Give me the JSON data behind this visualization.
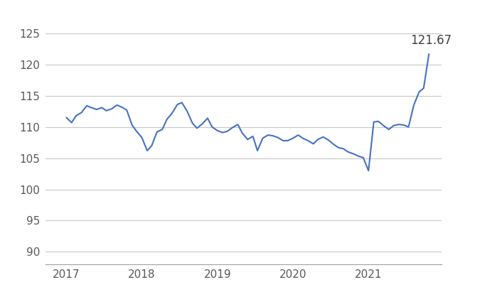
{
  "line_color": "#4472C4",
  "annotation_text": "121.67",
  "annotation_color": "#404040",
  "background_color": "#ffffff",
  "grid_color": "#c8c8c8",
  "ylim": [
    88,
    127
  ],
  "yticks": [
    90,
    95,
    100,
    105,
    110,
    115,
    120,
    125
  ],
  "xlim": [
    2016.72,
    2021.97
  ],
  "xticks": [
    2017,
    2018,
    2019,
    2020,
    2021
  ],
  "x": [
    2017.0,
    2017.07,
    2017.13,
    2017.2,
    2017.27,
    2017.33,
    2017.4,
    2017.47,
    2017.53,
    2017.6,
    2017.67,
    2017.73,
    2017.8,
    2017.87,
    2017.93,
    2018.0,
    2018.07,
    2018.13,
    2018.2,
    2018.27,
    2018.33,
    2018.4,
    2018.47,
    2018.53,
    2018.6,
    2018.67,
    2018.73,
    2018.8,
    2018.87,
    2018.93,
    2019.0,
    2019.07,
    2019.13,
    2019.2,
    2019.27,
    2019.33,
    2019.4,
    2019.47,
    2019.53,
    2019.6,
    2019.67,
    2019.73,
    2019.8,
    2019.87,
    2019.93,
    2020.0,
    2020.07,
    2020.13,
    2020.2,
    2020.27,
    2020.33,
    2020.4,
    2020.47,
    2020.53,
    2020.6,
    2020.67,
    2020.73,
    2020.8,
    2020.87,
    2020.93,
    2021.0,
    2021.07,
    2021.13,
    2021.2,
    2021.27,
    2021.33,
    2021.4,
    2021.47,
    2021.53,
    2021.6,
    2021.67,
    2021.73,
    2021.8
  ],
  "y": [
    111.5,
    110.7,
    111.8,
    112.3,
    113.4,
    113.1,
    112.8,
    113.1,
    112.6,
    112.9,
    113.5,
    113.2,
    112.7,
    110.3,
    109.3,
    108.3,
    106.2,
    107.0,
    109.2,
    109.6,
    111.2,
    112.2,
    113.6,
    113.9,
    112.5,
    110.6,
    109.8,
    110.5,
    111.4,
    110.0,
    109.4,
    109.1,
    109.3,
    109.9,
    110.4,
    109.0,
    108.0,
    108.5,
    106.2,
    108.2,
    108.7,
    108.6,
    108.3,
    107.8,
    107.8,
    108.2,
    108.7,
    108.2,
    107.8,
    107.3,
    108.0,
    108.4,
    107.9,
    107.3,
    106.7,
    106.5,
    106.0,
    105.7,
    105.3,
    105.1,
    103.0,
    110.8,
    110.9,
    110.2,
    109.6,
    110.2,
    110.4,
    110.3,
    110.0,
    113.5,
    115.6,
    116.2,
    121.67
  ]
}
